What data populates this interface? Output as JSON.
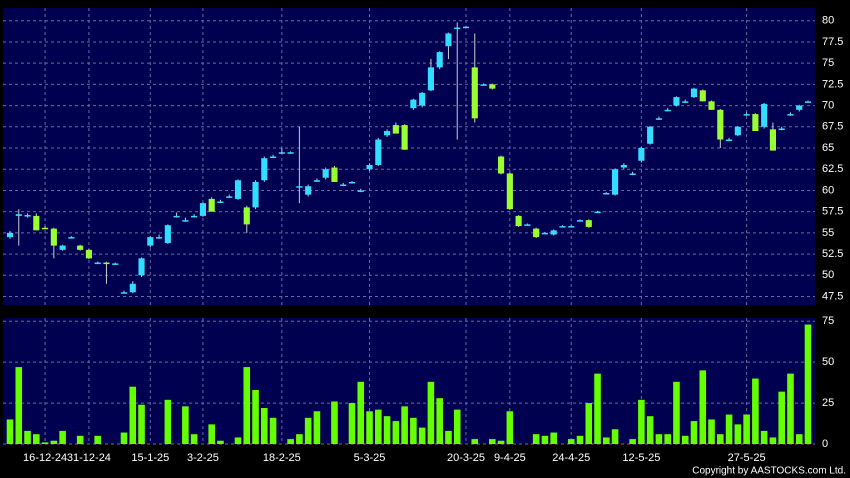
{
  "chart_data": {
    "type": "candlestick",
    "categories": [
      null,
      null,
      null,
      null,
      "16-12-24",
      null,
      null,
      null,
      null,
      "31-12-24",
      null,
      null,
      null,
      null,
      null,
      null,
      "15-1-25",
      null,
      null,
      null,
      null,
      null,
      "3-2-25",
      null,
      null,
      null,
      null,
      null,
      null,
      null,
      null,
      "18-2-25",
      null,
      null,
      null,
      null,
      null,
      null,
      null,
      null,
      null,
      "5-3-25",
      null,
      null,
      null,
      null,
      null,
      null,
      null,
      null,
      null,
      null,
      "20-3-25",
      null,
      null,
      null,
      null,
      "9-4-25",
      null,
      null,
      null,
      null,
      null,
      null,
      "24-4-25",
      null,
      null,
      null,
      null,
      null,
      null,
      null,
      "12-5-25",
      null,
      null,
      null,
      null,
      null,
      null,
      null,
      null,
      null,
      null,
      null,
      "27-5-25",
      null,
      null,
      null,
      null,
      null,
      null,
      null
    ],
    "open": [
      54.5,
      57,
      57,
      57,
      55.6,
      55.5,
      53,
      54.5,
      53.5,
      53,
      51.5,
      51.5,
      51.4,
      48,
      48,
      50,
      53.5,
      54.5,
      53.8,
      57,
      56.5,
      57,
      57,
      59,
      58.7,
      59.3,
      59,
      58,
      58,
      61.2,
      64,
      64.5,
      64.5,
      60.5,
      59.5,
      61.2,
      61.5,
      62.7,
      60.7,
      61,
      60,
      62.5,
      63,
      66.5,
      67.7,
      67.7,
      69.7,
      70,
      71.8,
      74.5,
      77,
      79.2,
      79.3,
      74.5,
      72.5,
      72.5,
      64,
      62,
      57,
      56,
      55.5,
      55,
      54.8,
      55.8,
      55.8,
      56.5,
      56.5,
      57.5,
      59.7,
      59.5,
      62.7,
      62,
      63.5,
      65.5,
      68.5,
      69.5,
      70,
      70.5,
      71,
      71.8,
      70.5,
      69.5,
      66,
      66.5,
      69,
      69,
      67.5,
      67.2,
      67.3,
      69,
      69.5,
      70.5
    ],
    "high": [
      55.2,
      57.8,
      57.3,
      57.3,
      55.8,
      55.6,
      53.6,
      54.6,
      53.6,
      53.1,
      51.6,
      51.6,
      51.5,
      48.2,
      49.3,
      52.1,
      54.6,
      54.8,
      56,
      57.4,
      56.8,
      57.2,
      58.6,
      59.2,
      58.9,
      59.5,
      61.3,
      58.2,
      61.2,
      64,
      64.2,
      65,
      64.6,
      67.5,
      60.7,
      61.4,
      62.7,
      62.9,
      60.9,
      61.1,
      60.2,
      63.2,
      66.2,
      67.2,
      68,
      67.8,
      70.8,
      71.6,
      75.5,
      76.4,
      78.6,
      79.8,
      79.4,
      78.5,
      72.6,
      72.6,
      64.1,
      62.1,
      57.1,
      56.1,
      55.6,
      55.1,
      55.4,
      55.9,
      55.9,
      56.6,
      56.6,
      57.6,
      59.8,
      62.6,
      63.2,
      62.2,
      65.1,
      67.6,
      68.7,
      69.7,
      71.1,
      70.7,
      72.1,
      71.9,
      70.6,
      69.6,
      66.2,
      67.6,
      69.2,
      69.1,
      70.3,
      68,
      67.5,
      69.2,
      70.1,
      70.6
    ],
    "low": [
      54.3,
      53.5,
      56.8,
      55.3,
      55.4,
      52,
      52.9,
      54.4,
      52.9,
      51.9,
      51.4,
      49,
      51.3,
      47.9,
      47.9,
      49.8,
      53.3,
      54.3,
      53.7,
      56.8,
      56.3,
      56.8,
      56.9,
      57.5,
      58.5,
      59.1,
      58.9,
      55,
      57.8,
      61,
      63.8,
      64.3,
      64.4,
      58.5,
      59.3,
      61,
      61.3,
      61,
      60.5,
      60.8,
      59.8,
      62.3,
      62.9,
      66.3,
      66.7,
      64.8,
      69.5,
      69.8,
      71.7,
      74.3,
      75.5,
      66,
      79.2,
      68,
      72.4,
      71.9,
      61.9,
      57.7,
      55.7,
      55.9,
      54.4,
      54.9,
      54.7,
      55.7,
      55.7,
      56.4,
      55.6,
      57.4,
      59.6,
      59.4,
      62.5,
      61.8,
      63.3,
      65.4,
      68.3,
      69.3,
      69.9,
      70.3,
      70.9,
      70.5,
      69.5,
      65,
      65.8,
      66.4,
      68.8,
      67,
      67.3,
      64.7,
      67.1,
      68.8,
      69.3,
      70.4
    ],
    "close": [
      55,
      57.2,
      57.1,
      55.3,
      55.5,
      53.5,
      53.5,
      54.5,
      53,
      52,
      51.5,
      51.4,
      51.4,
      48,
      49,
      52,
      54.5,
      54.5,
      55.9,
      57,
      56.5,
      57,
      58.5,
      57.5,
      58.7,
      59.3,
      61.2,
      56,
      61,
      63.8,
      64,
      64.5,
      64.5,
      60.5,
      60.5,
      61.2,
      62.5,
      61,
      60.7,
      61,
      60,
      63,
      66,
      67,
      66.7,
      64.8,
      70.7,
      71.5,
      74.5,
      76.3,
      78.5,
      79.2,
      79.3,
      68.5,
      72.5,
      72,
      62,
      57.8,
      55.8,
      56,
      54.5,
      55,
      55.3,
      55.8,
      55.8,
      56.5,
      55.7,
      57.5,
      59.7,
      62.5,
      63,
      62,
      65,
      67.5,
      68.5,
      69.5,
      71,
      70.5,
      72,
      70.5,
      69.5,
      66,
      66,
      67.5,
      69,
      67,
      70.2,
      64.7,
      67.3,
      69,
      70,
      70.5
    ],
    "up_color": "#33ddff",
    "down_color": "#99ff33",
    "ylim": [
      46.5,
      81.5
    ],
    "yticks": [
      47.5,
      50,
      52.5,
      55,
      57.5,
      60,
      62.5,
      65,
      67.5,
      70,
      72.5,
      75,
      77.5,
      80
    ],
    "grid": true,
    "volume": {
      "type": "bar",
      "color": "#66ff00",
      "values": [
        15,
        47,
        8,
        6,
        1,
        2,
        8,
        0,
        5,
        0,
        5,
        0,
        0,
        7,
        35,
        24,
        0,
        0,
        27,
        0,
        23,
        6,
        0,
        12,
        2,
        0,
        4,
        47,
        33,
        22,
        16,
        0,
        3,
        6,
        16,
        20,
        0,
        26,
        0,
        25,
        38,
        20,
        21,
        17,
        14,
        23,
        16,
        10,
        38,
        28,
        8,
        21,
        0,
        3,
        0,
        3,
        2,
        20,
        0,
        0,
        6,
        5,
        7,
        0,
        3,
        5,
        25,
        43,
        4,
        9,
        0,
        3,
        27,
        17,
        6,
        6,
        38,
        5,
        14,
        45,
        15,
        6,
        18,
        12,
        18,
        40,
        8,
        4,
        32,
        43,
        6,
        73
      ],
      "ylim": [
        0,
        77
      ],
      "yticks": [
        0,
        25,
        50,
        75
      ]
    },
    "copyright": "Copyright by AASTOCKS.com Ltd."
  }
}
